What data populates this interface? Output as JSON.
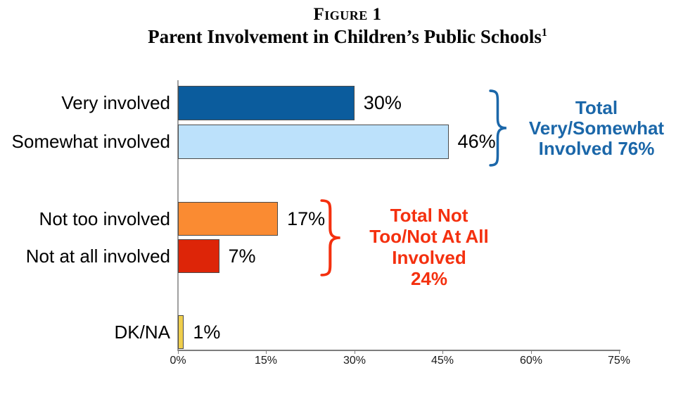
{
  "title": {
    "figure_label": "Figure 1",
    "main": "Parent Involvement in Children’s Public Schools",
    "footnote_marker": "1"
  },
  "chart_data": {
    "type": "bar",
    "orientation": "horizontal",
    "title": "Figure 1",
    "subtitle": "Parent Involvement in Children’s Public Schools",
    "categories": [
      "Very involved",
      "Somewhat involved",
      "Not too involved",
      "Not at all involved",
      "DK/NA"
    ],
    "values": [
      30,
      46,
      17,
      7,
      1
    ],
    "value_labels": [
      "30%",
      "46%",
      "17%",
      "7%",
      "1%"
    ],
    "bar_colors": [
      "#0B5C9D",
      "#BCE1FB",
      "#FA8B32",
      "#DD2508",
      "#EFCE4C"
    ],
    "xlim": [
      0,
      75
    ],
    "x_ticks": [
      "0%",
      "15%",
      "30%",
      "45%",
      "60%",
      "75%"
    ],
    "grid": false,
    "legend_position": "none",
    "annotations": [
      {
        "applies_to": [
          "Very involved",
          "Somewhat involved"
        ],
        "lines": [
          "Total",
          "Very/Somewhat",
          "Involved 76%"
        ],
        "total": "76%",
        "color": "#1B67A9"
      },
      {
        "applies_to": [
          "Not too involved",
          "Not at all involved"
        ],
        "lines": [
          "Total Not",
          "Too/Not At All",
          "Involved",
          "24%"
        ],
        "total": "24%",
        "color": "#F4300F"
      }
    ],
    "axis_color": "#7D7D7D"
  }
}
